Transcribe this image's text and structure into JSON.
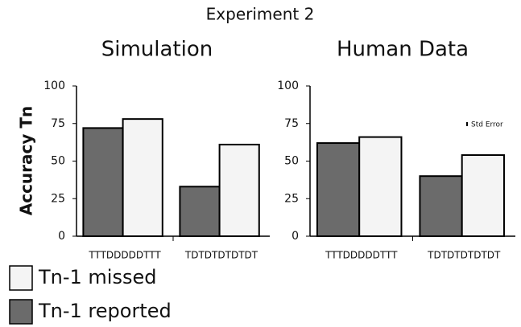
{
  "title": "Experiment 2",
  "chart_data": [
    {
      "type": "bar",
      "title": "Simulation",
      "ylabel": "Accuracy Tn",
      "categories": [
        "TTTDDDDDTTT",
        "TDTDTDTDTDT"
      ],
      "series": [
        {
          "name": "Tn-1 reported",
          "color": "#6b6b6b",
          "values": [
            72,
            33
          ]
        },
        {
          "name": "Tn-1 missed",
          "color": "#f4f4f4",
          "values": [
            78,
            61
          ]
        }
      ],
      "ylim": [
        0,
        100
      ],
      "yticks": [
        0,
        25,
        50,
        75,
        100
      ]
    },
    {
      "type": "bar",
      "title": "Human Data",
      "annotation": "Std Error",
      "categories": [
        "TTTDDDDDTTT",
        "TDTDTDTDTDT"
      ],
      "series": [
        {
          "name": "Tn-1 reported",
          "color": "#6b6b6b",
          "values": [
            62,
            40
          ]
        },
        {
          "name": "Tn-1 missed",
          "color": "#f4f4f4",
          "values": [
            66,
            54
          ]
        }
      ],
      "ylim": [
        0,
        100
      ],
      "yticks": [
        0,
        25,
        50,
        75,
        100
      ]
    }
  ]
}
